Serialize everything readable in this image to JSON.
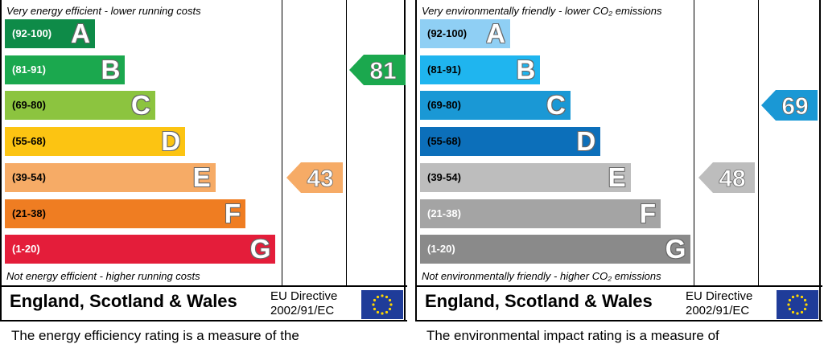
{
  "chart_data": [
    {
      "type": "bar",
      "categories": [
        "A",
        "B",
        "C",
        "D",
        "E",
        "F",
        "G"
      ],
      "bands": [
        {
          "range": "(92-100)",
          "letter": "A",
          "color": "#0e8b48",
          "text_color": "#ffffff"
        },
        {
          "range": "(81-91)",
          "letter": "B",
          "color": "#1ba84e",
          "text_color": "#ffffff"
        },
        {
          "range": "(69-80)",
          "letter": "C",
          "color": "#8cc43f",
          "text_color": "#000000"
        },
        {
          "range": "(55-68)",
          "letter": "D",
          "color": "#fcc412",
          "text_color": "#000000"
        },
        {
          "range": "(39-54)",
          "letter": "E",
          "color": "#f6ab66",
          "text_color": "#000000"
        },
        {
          "range": "(21-38)",
          "letter": "F",
          "color": "#ef7d22",
          "text_color": "#000000"
        },
        {
          "range": "(1-20)",
          "letter": "G",
          "color": "#e41d3a",
          "text_color": "#ffffff"
        }
      ],
      "top_caption": "Very energy efficient - lower running costs",
      "bottom_caption": "Not energy efficient - higher running costs",
      "current": {
        "value": 43,
        "color": "#f6ab66"
      },
      "potential": {
        "value": 81,
        "color": "#1ba84e"
      },
      "region": "England, Scotland & Wales",
      "directive_line1": "EU Directive",
      "directive_line2": "2002/91/EC",
      "description": "The energy efficiency rating is a measure of the"
    },
    {
      "type": "bar",
      "categories": [
        "A",
        "B",
        "C",
        "D",
        "E",
        "F",
        "G"
      ],
      "bands": [
        {
          "range": "(92-100)",
          "letter": "A",
          "color": "#8fcff4",
          "text_color": "#000000"
        },
        {
          "range": "(81-91)",
          "letter": "B",
          "color": "#1fb5ef",
          "text_color": "#000000"
        },
        {
          "range": "(69-80)",
          "letter": "C",
          "color": "#1a98d5",
          "text_color": "#000000"
        },
        {
          "range": "(55-68)",
          "letter": "D",
          "color": "#0c6fba",
          "text_color": "#000000"
        },
        {
          "range": "(39-54)",
          "letter": "E",
          "color": "#bdbdbd",
          "text_color": "#000000"
        },
        {
          "range": "(21-38)",
          "letter": "F",
          "color": "#a4a4a4",
          "text_color": "#ffffff"
        },
        {
          "range": "(1-20)",
          "letter": "G",
          "color": "#8a8a8a",
          "text_color": "#ffffff"
        }
      ],
      "top_caption": "Very environmentally friendly - lower CO₂ emissions",
      "bottom_caption": "Not environmentally friendly - higher CO₂ emissions",
      "current": {
        "value": 48,
        "color": "#bdbdbd"
      },
      "potential": {
        "value": 69,
        "color": "#1a98d5"
      },
      "region": "England, Scotland & Wales",
      "directive_line1": "EU Directive",
      "directive_line2": "2002/91/EC",
      "description": "The environmental impact rating is a measure of"
    }
  ]
}
